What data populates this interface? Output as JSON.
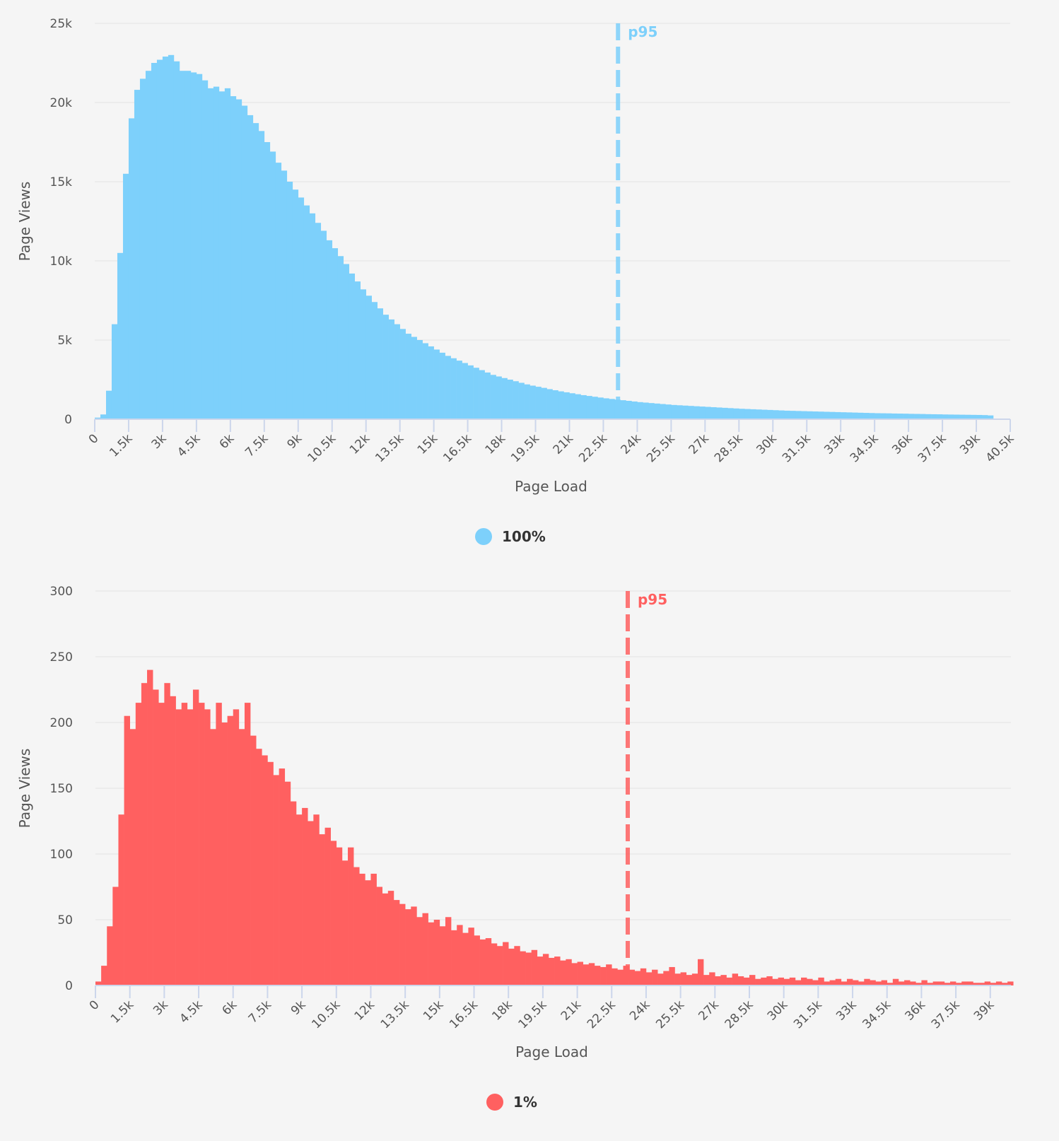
{
  "chart_data": [
    {
      "type": "bar",
      "xlabel": "Page Load",
      "ylabel": "Page Views",
      "xlim": [
        0,
        40500
      ],
      "ylim": [
        0,
        25000
      ],
      "bin_width": 250,
      "x_ticks": [
        "0",
        "1.5k",
        "3k",
        "4.5k",
        "6k",
        "7.5k",
        "9k",
        "10.5k",
        "12k",
        "13.5k",
        "15k",
        "16.5k",
        "18k",
        "19.5k",
        "21k",
        "22.5k",
        "24k",
        "25.5k",
        "27k",
        "28.5k",
        "30k",
        "31.5k",
        "33k",
        "34.5k",
        "36k",
        "37.5k",
        "39k",
        "40.5k"
      ],
      "x_tick_values": [
        0,
        1500,
        3000,
        4500,
        6000,
        7500,
        9000,
        10500,
        12000,
        13500,
        15000,
        16500,
        18000,
        19500,
        21000,
        22500,
        24000,
        25500,
        27000,
        28500,
        30000,
        31500,
        33000,
        34500,
        36000,
        37500,
        39000,
        40500
      ],
      "y_ticks": [
        "0",
        "5k",
        "10k",
        "15k",
        "20k",
        "25k"
      ],
      "y_tick_values": [
        0,
        5000,
        10000,
        15000,
        20000,
        25000
      ],
      "grid": true,
      "legend": "bottom-center",
      "color": "#7dd0fb",
      "series": [
        {
          "name": "100%",
          "values": [
            100,
            300,
            1800,
            6000,
            10500,
            15500,
            19000,
            20800,
            21500,
            22000,
            22500,
            22700,
            22900,
            23000,
            22600,
            22000,
            22000,
            21900,
            21800,
            21400,
            20900,
            21000,
            20700,
            20900,
            20400,
            20200,
            19800,
            19200,
            18700,
            18200,
            17500,
            16900,
            16200,
            15700,
            15000,
            14500,
            14000,
            13500,
            13000,
            12400,
            11900,
            11300,
            10800,
            10300,
            9800,
            9200,
            8700,
            8200,
            7800,
            7400,
            7000,
            6600,
            6300,
            6000,
            5700,
            5400,
            5200,
            5000,
            4800,
            4600,
            4400,
            4200,
            4000,
            3850,
            3700,
            3550,
            3400,
            3250,
            3100,
            2950,
            2800,
            2700,
            2600,
            2500,
            2400,
            2300,
            2200,
            2120,
            2050,
            1980,
            1900,
            1830,
            1760,
            1700,
            1640,
            1580,
            1520,
            1470,
            1420,
            1370,
            1320,
            1280,
            1240,
            1200,
            1160,
            1120,
            1080,
            1050,
            1020,
            990,
            960,
            930,
            900,
            880,
            860,
            840,
            820,
            800,
            780,
            760,
            740,
            720,
            700,
            680,
            660,
            645,
            630,
            615,
            600,
            585,
            570,
            555,
            540,
            530,
            520,
            510,
            500,
            490,
            480,
            470,
            460,
            450,
            440,
            430,
            420,
            410,
            400,
            390,
            380,
            375,
            370,
            360,
            355,
            350,
            340,
            335,
            330,
            320,
            315,
            310,
            300,
            295,
            290,
            285,
            280,
            275,
            270,
            260,
            240
          ]
        }
      ],
      "annotations": [
        {
          "label": "p95",
          "x": 23150
        }
      ]
    },
    {
      "type": "bar",
      "xlabel": "Page Load",
      "ylabel": "Page Views",
      "xlim": [
        0,
        39900
      ],
      "ylim": [
        0,
        300
      ],
      "bin_width": 250,
      "x_ticks": [
        "0",
        "1.5k",
        "3k",
        "4.5k",
        "6k",
        "7.5k",
        "9k",
        "10.5k",
        "12k",
        "13.5k",
        "15k",
        "16.5k",
        "18k",
        "19.5k",
        "21k",
        "22.5k",
        "24k",
        "25.5k",
        "27k",
        "28.5k",
        "30k",
        "31.5k",
        "33k",
        "34.5k",
        "36k",
        "37.5k",
        "39k"
      ],
      "x_tick_values": [
        0,
        1500,
        3000,
        4500,
        6000,
        7500,
        9000,
        10500,
        12000,
        13500,
        15000,
        16500,
        18000,
        19500,
        21000,
        22500,
        24000,
        25500,
        27000,
        28500,
        30000,
        31500,
        33000,
        34500,
        36000,
        37500,
        39000
      ],
      "y_ticks": [
        "0",
        "50",
        "100",
        "150",
        "200",
        "250",
        "300"
      ],
      "y_tick_values": [
        0,
        50,
        100,
        150,
        200,
        250,
        300
      ],
      "grid": true,
      "legend": "bottom-center",
      "color": "#ff6060",
      "series": [
        {
          "name": "1%",
          "values": [
            3,
            15,
            45,
            75,
            130,
            205,
            195,
            215,
            230,
            240,
            225,
            215,
            230,
            220,
            210,
            215,
            210,
            225,
            215,
            210,
            195,
            215,
            200,
            205,
            210,
            195,
            215,
            190,
            180,
            175,
            170,
            160,
            165,
            155,
            140,
            130,
            135,
            125,
            130,
            115,
            120,
            110,
            105,
            95,
            105,
            90,
            85,
            80,
            85,
            75,
            70,
            72,
            65,
            62,
            58,
            60,
            52,
            55,
            48,
            50,
            45,
            52,
            42,
            46,
            40,
            44,
            38,
            35,
            36,
            32,
            30,
            33,
            28,
            30,
            26,
            25,
            27,
            22,
            24,
            21,
            22,
            19,
            20,
            17,
            18,
            16,
            17,
            15,
            14,
            16,
            13,
            12,
            15,
            12,
            11,
            13,
            10,
            12,
            9,
            11,
            14,
            9,
            10,
            8,
            9,
            20,
            8,
            10,
            7,
            8,
            6,
            9,
            7,
            6,
            8,
            5,
            6,
            7,
            5,
            6,
            5,
            6,
            4,
            6,
            5,
            4,
            6,
            3,
            4,
            5,
            3,
            5,
            4,
            3,
            5,
            4,
            3,
            4,
            2,
            5,
            3,
            4,
            3,
            2,
            4,
            2,
            3,
            3,
            2,
            3,
            2,
            3,
            3,
            2,
            2,
            3,
            2,
            3,
            2,
            3
          ]
        }
      ],
      "annotations": [
        {
          "label": "p95",
          "x": 23200
        }
      ]
    }
  ]
}
